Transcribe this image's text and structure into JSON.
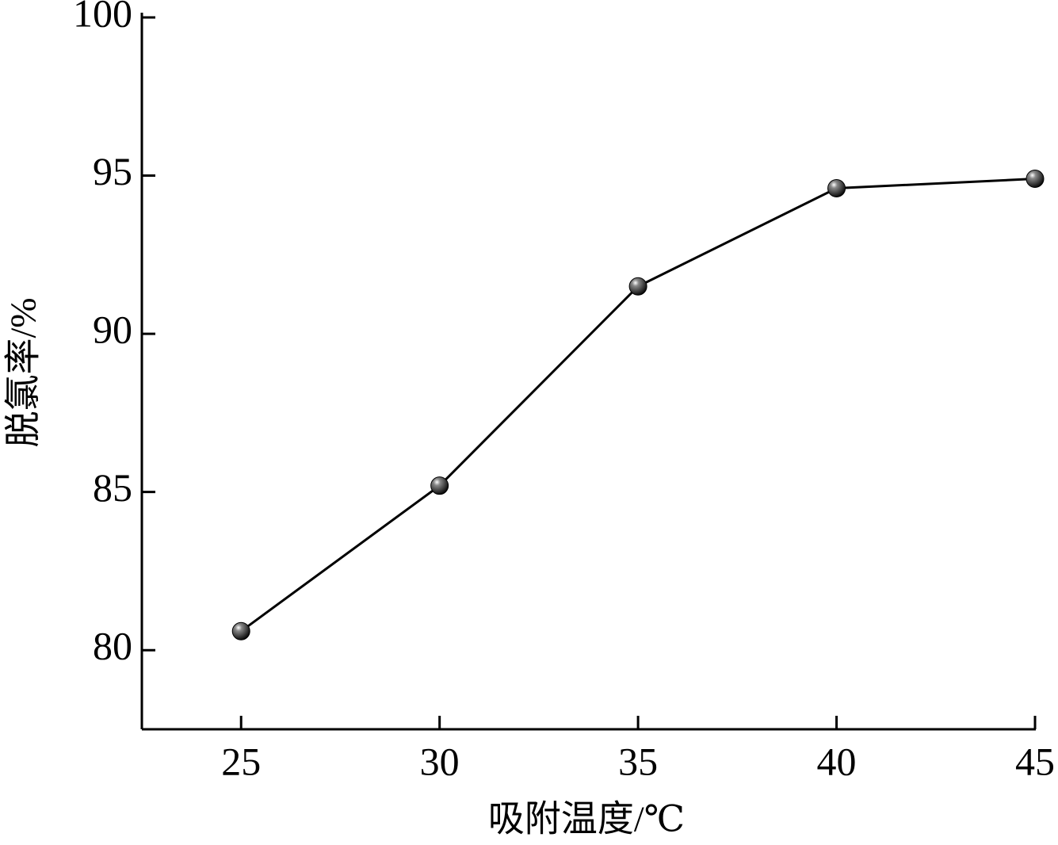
{
  "chart_data": {
    "type": "line",
    "x_label": "吸附温度/℃",
    "y_label": "脱氯率/%",
    "x": [
      25,
      30,
      35,
      40,
      45
    ],
    "series": [
      {
        "values": [
          80.6,
          85.2,
          91.5,
          94.6,
          94.9
        ],
        "color": "#000000"
      }
    ],
    "xlim": [
      22.5,
      45
    ],
    "xticks": [
      25,
      30,
      35,
      40,
      45
    ],
    "ylim": [
      77.5,
      100
    ],
    "yticks": [
      80,
      85,
      90,
      95,
      100
    ]
  }
}
